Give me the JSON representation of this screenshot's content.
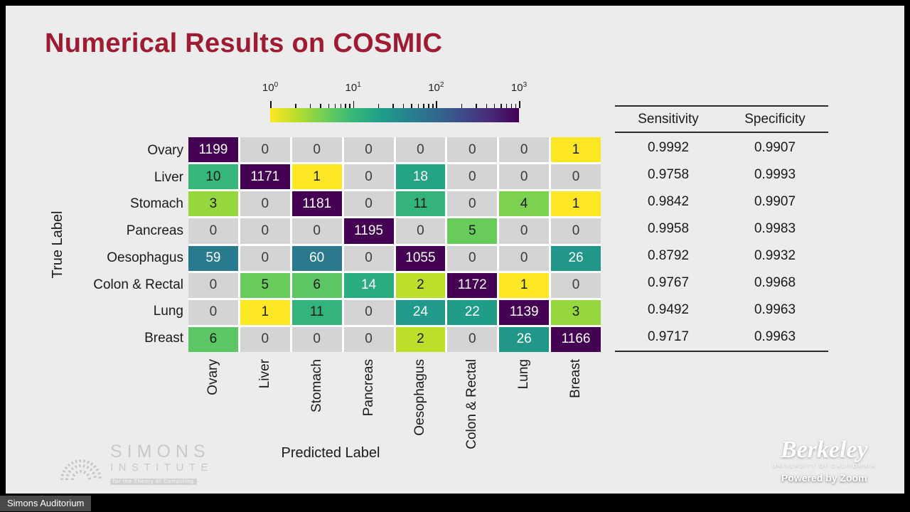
{
  "slide": {
    "title": "Numerical Results on COSMIC"
  },
  "chart_data": {
    "type": "heatmap",
    "title": "Numerical Results on COSMIC",
    "xlabel": "Predicted Label",
    "ylabel": "True Label",
    "row_labels": [
      "Ovary",
      "Liver",
      "Stomach",
      "Pancreas",
      "Oesophagus",
      "Colon & Rectal",
      "Lung",
      "Breast"
    ],
    "col_labels": [
      "Ovary",
      "Liver",
      "Stomach",
      "Pancreas",
      "Oesophagus",
      "Colon & Rectal",
      "Lung",
      "Breast"
    ],
    "matrix": [
      [
        1199,
        0,
        0,
        0,
        0,
        0,
        0,
        1
      ],
      [
        10,
        1171,
        1,
        0,
        18,
        0,
        0,
        0
      ],
      [
        3,
        0,
        1181,
        0,
        11,
        0,
        4,
        1
      ],
      [
        0,
        0,
        0,
        1195,
        0,
        5,
        0,
        0
      ],
      [
        59,
        0,
        60,
        0,
        1055,
        0,
        0,
        26
      ],
      [
        0,
        5,
        6,
        14,
        2,
        1172,
        1,
        0
      ],
      [
        0,
        1,
        11,
        0,
        24,
        22,
        1139,
        3
      ],
      [
        6,
        0,
        0,
        0,
        2,
        0,
        26,
        1166
      ]
    ],
    "colorbar": {
      "scale": "log",
      "colormap": "viridis_reversed",
      "range": [
        1,
        1000
      ],
      "tick_labels": [
        {
          "base": "10",
          "exp": "0"
        },
        {
          "base": "10",
          "exp": "1"
        },
        {
          "base": "10",
          "exp": "2"
        },
        {
          "base": "10",
          "exp": "3"
        }
      ],
      "zero_color": "#d4d4d4"
    },
    "metrics": {
      "headers": [
        "Sensitivity",
        "Specificity"
      ],
      "rows": [
        [
          "0.9992",
          "0.9907"
        ],
        [
          "0.9758",
          "0.9993"
        ],
        [
          "0.9842",
          "0.9907"
        ],
        [
          "0.9958",
          "0.9983"
        ],
        [
          "0.8792",
          "0.9932"
        ],
        [
          "0.9767",
          "0.9968"
        ],
        [
          "0.9492",
          "0.9963"
        ],
        [
          "0.9717",
          "0.9963"
        ]
      ]
    }
  },
  "branding": {
    "simons": {
      "line1": "SIMONS",
      "line2": "INSTITUTE",
      "tagline": "for the Theory of Computing"
    },
    "berkeley": {
      "wordmark": "Berkeley",
      "sub": "UNIVERSITY OF CALIFORNIA",
      "powered": "Powered by Zoom"
    }
  },
  "footer": {
    "room_label": "Simons Auditorium"
  },
  "colors": {
    "title": "#9e1b32",
    "zero_cell": "#d4d4d4"
  }
}
